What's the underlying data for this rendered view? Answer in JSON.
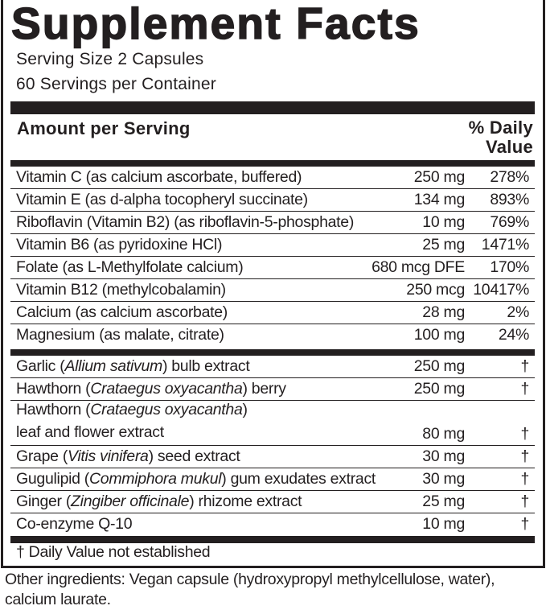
{
  "title": "Supplement Facts",
  "serving_size": "Serving Size 2 Capsules",
  "servings_per_container": "60 Servings per Container",
  "header": {
    "amount": "Amount per Serving",
    "dv_line1": "% Daily",
    "dv_line2": "Value"
  },
  "vitamins": [
    {
      "name": "Vitamin C (as calcium ascorbate, buffered)",
      "amount": "250 mg",
      "dv": "278%"
    },
    {
      "name": "Vitamin E (as d-alpha tocopheryl succinate)",
      "amount": "134 mg",
      "dv": "893%"
    },
    {
      "name": "Riboflavin (Vitamin B2) (as riboflavin-5-phosphate)",
      "amount": "10 mg",
      "dv": "769%"
    },
    {
      "name": "Vitamin B6 (as pyridoxine HCl)",
      "amount": "25 mg",
      "dv": "1471%"
    },
    {
      "name": "Folate (as L-Methylfolate calcium)",
      "amount": "680 mcg DFE",
      "dv": "170%"
    },
    {
      "name": "Vitamin B12 (methylcobalamin)",
      "amount": "250 mcg",
      "dv": "10417%"
    },
    {
      "name": "Calcium (as calcium ascorbate)",
      "amount": "28 mg",
      "dv": "2%"
    },
    {
      "name": "Magnesium (as malate, citrate)",
      "amount": "100 mg",
      "dv": "24%"
    }
  ],
  "botanicals": [
    {
      "pre": "Garlic (",
      "latin": "Allium sativum",
      "post": ") bulb extract",
      "amount": "250 mg",
      "dv": "†"
    },
    {
      "pre": "Hawthorn (",
      "latin": "Crataegus oxyacantha",
      "post": ") berry",
      "amount": "250 mg",
      "dv": "†"
    },
    {
      "pre": "Hawthorn (",
      "latin": "Crataegus oxyacantha",
      "post": ")",
      "line2": "leaf and flower extract",
      "amount": "80 mg",
      "dv": "†"
    },
    {
      "pre": "Grape (",
      "latin": "Vitis vinifera",
      "post": ") seed extract",
      "amount": "30 mg",
      "dv": "†"
    },
    {
      "pre": "Gugulipid (",
      "latin": "Commiphora mukul",
      "post": ") gum exudates extract",
      "amount": "30 mg",
      "dv": "†"
    },
    {
      "pre": "Ginger (",
      "latin": "Zingiber officinale",
      "post": ") rhizome extract",
      "amount": "25 mg",
      "dv": "†"
    },
    {
      "pre": "Co-enzyme Q-10",
      "latin": "",
      "post": "",
      "amount": "10 mg",
      "dv": "†"
    }
  ],
  "footnote": "†  Daily Value not established",
  "other_ingredients": "Other ingredients: Vegan capsule (hydroxypropyl methylcellulose, water), calcium laurate."
}
